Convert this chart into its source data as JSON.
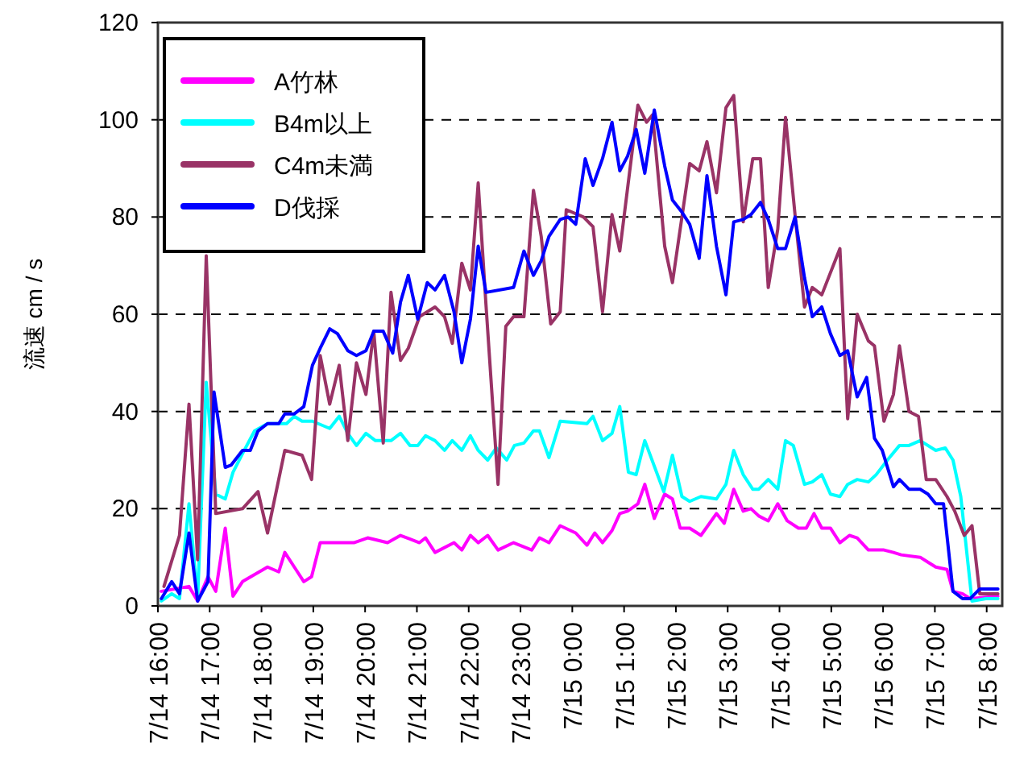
{
  "chart_data": {
    "type": "line",
    "ylabel": "流速 cm / s",
    "xlim": [
      "--07-14T16:00",
      "--07-15T08:18"
    ],
    "ylim": [
      0,
      120
    ],
    "yticks": [
      0,
      20,
      40,
      60,
      80,
      100,
      120
    ],
    "xticks": [
      {
        "value": "--07-14T16:00",
        "label": "7/14 16:00"
      },
      {
        "value": "--07-14T17:00",
        "label": "7/14 17:00"
      },
      {
        "value": "--07-14T18:00",
        "label": "7/14 18:00"
      },
      {
        "value": "--07-14T19:00",
        "label": "7/14 19:00"
      },
      {
        "value": "--07-14T20:00",
        "label": "7/14 20:00"
      },
      {
        "value": "--07-14T21:00",
        "label": "7/14 21:00"
      },
      {
        "value": "--07-14T22:00",
        "label": "7/14 22:00"
      },
      {
        "value": "--07-14T23:00",
        "label": "7/14 23:00"
      },
      {
        "value": "--07-15T00:00",
        "label": "7/15 0:00"
      },
      {
        "value": "--07-15T01:00",
        "label": "7/15 1:00"
      },
      {
        "value": "--07-15T02:00",
        "label": "7/15 2:00"
      },
      {
        "value": "--07-15T03:00",
        "label": "7/15 3:00"
      },
      {
        "value": "--07-15T04:00",
        "label": "7/15 4:00"
      },
      {
        "value": "--07-15T05:00",
        "label": "7/15 5:00"
      },
      {
        "value": "--07-15T06:00",
        "label": "7/15 6:00"
      },
      {
        "value": "--07-15T07:00",
        "label": "7/15 7:00"
      },
      {
        "value": "--07-15T08:00",
        "label": "7/15 8:00"
      }
    ],
    "grid": "y",
    "legend": "top left",
    "series": [
      {
        "name": "A竹林",
        "color": "#ff00ff",
        "x": [
          "--07-14T16:04",
          "--07-14T16:36",
          "--07-14T16:46",
          "--07-14T16:58",
          "--07-14T17:07",
          "--07-14T17:18",
          "--07-14T17:27",
          "--07-14T17:38",
          "--07-14T18:07",
          "--07-14T18:20",
          "--07-14T18:27",
          "--07-14T18:38",
          "--07-14T18:49",
          "--07-14T18:58",
          "--07-14T19:08",
          "--07-14T19:47",
          "--07-14T20:03",
          "--07-14T20:26",
          "--07-14T20:41",
          "--07-14T21:03",
          "--07-14T21:10",
          "--07-14T21:21",
          "--07-14T21:43",
          "--07-14T21:52",
          "--07-14T22:02",
          "--07-14T22:11",
          "--07-14T22:22",
          "--07-14T22:34",
          "--07-14T22:52",
          "--07-14T23:13",
          "--07-14T23:22",
          "--07-14T23:33",
          "--07-14T23:46",
          "--07-15T00:04",
          "--07-15T00:17",
          "--07-15T00:26",
          "--07-15T00:35",
          "--07-15T00:46",
          "--07-15T00:55",
          "--07-15T01:04",
          "--07-15T01:16",
          "--07-15T01:24",
          "--07-15T01:35",
          "--07-15T01:47",
          "--07-15T01:56",
          "--07-15T02:05",
          "--07-15T02:16",
          "--07-15T02:29",
          "--07-15T02:47",
          "--07-15T02:56",
          "--07-15T03:07",
          "--07-15T03:18",
          "--07-15T03:27",
          "--07-15T03:36",
          "--07-15T03:47",
          "--07-15T03:58",
          "--07-15T04:09",
          "--07-15T04:22",
          "--07-15T04:31",
          "--07-15T04:40",
          "--07-15T04:49",
          "--07-15T04:59",
          "--07-15T05:10",
          "--07-15T05:21",
          "--07-15T05:30",
          "--07-15T05:43",
          "--07-15T06:01",
          "--07-15T06:12",
          "--07-15T06:21",
          "--07-15T06:43",
          "--07-15T06:52",
          "--07-15T07:01",
          "--07-15T07:14",
          "--07-15T07:21",
          "--07-15T07:32",
          "--07-15T07:41",
          "--07-15T08:13"
        ],
        "values": [
          3,
          4,
          1,
          6,
          3,
          16,
          2,
          5,
          8,
          7,
          11,
          8,
          5,
          6,
          13,
          13,
          14,
          13,
          14.5,
          13,
          14,
          11,
          13,
          11.5,
          14.5,
          13,
          14.5,
          11.5,
          13,
          11.5,
          14,
          13,
          16.5,
          15,
          12.5,
          15,
          13,
          15.5,
          19,
          19.5,
          21,
          25,
          18,
          23,
          22,
          16,
          16,
          14.5,
          19,
          17,
          24,
          19.5,
          20,
          18.5,
          17.5,
          21,
          17.5,
          16,
          16,
          19,
          16,
          16,
          13,
          14.5,
          14,
          11.5,
          11.5,
          11,
          10.5,
          10,
          9,
          8,
          7.5,
          3,
          2.5,
          1.5,
          2
        ]
      },
      {
        "name": "B4m以上",
        "color": "#00ffff",
        "x": [
          "--07-14T16:04",
          "--07-14T16:16",
          "--07-14T16:25",
          "--07-14T16:36",
          "--07-14T16:46",
          "--07-14T16:56",
          "--07-14T17:07",
          "--07-14T17:18",
          "--07-14T17:27",
          "--07-14T17:40",
          "--07-14T17:52",
          "--07-14T18:07",
          "--07-14T18:29",
          "--07-14T18:38",
          "--07-14T18:47",
          "--07-14T18:59",
          "--07-14T19:19",
          "--07-14T19:30",
          "--07-14T19:40",
          "--07-14T19:50",
          "--07-14T20:01",
          "--07-14T20:12",
          "--07-14T20:30",
          "--07-14T20:41",
          "--07-14T20:52",
          "--07-14T21:01",
          "--07-14T21:10",
          "--07-14T21:21",
          "--07-14T21:32",
          "--07-14T21:41",
          "--07-14T21:52",
          "--07-14T22:02",
          "--07-14T22:11",
          "--07-14T22:22",
          "--07-14T22:32",
          "--07-14T22:44",
          "--07-14T22:53",
          "--07-14T23:04",
          "--07-14T23:15",
          "--07-14T23:22",
          "--07-14T23:33",
          "--07-14T23:46",
          "--07-15T00:17",
          "--07-15T00:24",
          "--07-15T00:35",
          "--07-15T00:46",
          "--07-15T00:55",
          "--07-15T01:05",
          "--07-15T01:14",
          "--07-15T01:24",
          "--07-15T01:46",
          "--07-15T01:56",
          "--07-15T02:07",
          "--07-15T02:16",
          "--07-15T02:29",
          "--07-15T02:47",
          "--07-15T02:58",
          "--07-15T03:07",
          "--07-15T03:18",
          "--07-15T03:29",
          "--07-15T03:36",
          "--07-15T03:47",
          "--07-15T03:58",
          "--07-15T04:07",
          "--07-15T04:16",
          "--07-15T04:29",
          "--07-15T04:38",
          "--07-15T04:49",
          "--07-15T04:59",
          "--07-15T05:10",
          "--07-15T05:19",
          "--07-15T05:30",
          "--07-15T05:43",
          "--07-15T05:52",
          "--07-15T06:05",
          "--07-15T06:19",
          "--07-15T06:30",
          "--07-15T06:43",
          "--07-15T07:01",
          "--07-15T07:12",
          "--07-15T07:21",
          "--07-15T07:30",
          "--07-15T07:43",
          "--07-15T07:59",
          "--07-15T08:13"
        ],
        "values": [
          1,
          2.5,
          1.5,
          21,
          1.5,
          46,
          23,
          22,
          27.5,
          32,
          36,
          37.5,
          37.5,
          39,
          38,
          38,
          36.5,
          39,
          35.5,
          33,
          35.5,
          34,
          34,
          35.5,
          33,
          33,
          35,
          34,
          32,
          34,
          32,
          35,
          32,
          30,
          32.5,
          30,
          33,
          33.5,
          36,
          36,
          30.5,
          38,
          37.5,
          39,
          34,
          35.5,
          41,
          27.5,
          27,
          34,
          23.5,
          31,
          22.5,
          21.5,
          22.5,
          22,
          25,
          32,
          27,
          24,
          24,
          26,
          24,
          34,
          33,
          25,
          25.5,
          27,
          23,
          22.5,
          25,
          26,
          25.5,
          27,
          30,
          33,
          33,
          34,
          32,
          32.5,
          30,
          22.5,
          1,
          1.5,
          1.5
        ]
      },
      {
        "name": "C4m未満",
        "color": "#993366",
        "x": [
          "--07-14T16:07",
          "--07-14T16:25",
          "--07-14T16:36",
          "--07-14T16:46",
          "--07-14T16:56",
          "--07-14T17:07",
          "--07-14T17:38",
          "--07-14T17:56",
          "--07-14T18:07",
          "--07-14T18:27",
          "--07-14T18:47",
          "--07-14T18:58",
          "--07-14T19:08",
          "--07-14T19:19",
          "--07-14T19:30",
          "--07-14T19:40",
          "--07-14T19:50",
          "--07-14T20:01",
          "--07-14T20:10",
          "--07-14T20:21",
          "--07-14T20:30",
          "--07-14T20:41",
          "--07-14T20:50",
          "--07-14T21:03",
          "--07-14T21:21",
          "--07-14T21:32",
          "--07-14T21:41",
          "--07-14T21:52",
          "--07-14T22:02",
          "--07-14T22:11",
          "--07-14T22:20",
          "--07-14T22:34",
          "--07-14T22:43",
          "--07-14T22:52",
          "--07-14T23:04",
          "--07-14T23:15",
          "--07-14T23:24",
          "--07-14T23:35",
          "--07-14T23:46",
          "--07-14T23:53",
          "--07-15T00:13",
          "--07-15T00:24",
          "--07-15T00:35",
          "--07-15T00:46",
          "--07-15T00:55",
          "--07-15T01:16",
          "--07-15T01:26",
          "--07-15T01:33",
          "--07-15T01:47",
          "--07-15T01:56",
          "--07-15T02:16",
          "--07-15T02:27",
          "--07-15T02:36",
          "--07-15T02:47",
          "--07-15T02:58",
          "--07-15T03:07",
          "--07-15T03:18",
          "--07-15T03:29",
          "--07-15T03:38",
          "--07-15T03:47",
          "--07-15T03:58",
          "--07-15T04:07",
          "--07-15T04:18",
          "--07-15T04:29",
          "--07-15T04:38",
          "--07-15T04:49",
          "--07-15T05:10",
          "--07-15T05:19",
          "--07-15T05:30",
          "--07-15T05:43",
          "--07-15T05:50",
          "--07-15T06:01",
          "--07-15T06:12",
          "--07-15T06:19",
          "--07-15T06:30",
          "--07-15T06:41",
          "--07-15T06:50",
          "--07-15T07:01",
          "--07-15T07:14",
          "--07-15T07:23",
          "--07-15T07:34",
          "--07-15T07:43",
          "--07-15T07:52",
          "--07-15T08:13"
        ],
        "values": [
          4,
          14.5,
          41.5,
          9.5,
          72,
          19,
          20,
          23.5,
          15,
          32,
          31,
          26,
          51.5,
          41.5,
          49.5,
          34,
          50,
          43.5,
          56.5,
          33.5,
          64.5,
          50.5,
          53,
          59.5,
          61.5,
          59.5,
          54,
          70.5,
          65,
          87,
          62,
          25,
          57.5,
          59.5,
          59.5,
          85.5,
          76,
          58,
          60.5,
          81.5,
          80,
          78,
          60.5,
          80.5,
          73,
          103,
          99.5,
          101,
          74,
          66.5,
          91,
          89.5,
          95.5,
          85,
          102.5,
          105,
          79,
          92,
          92,
          65.5,
          77.5,
          100.5,
          80.5,
          61.5,
          65.5,
          64,
          73.5,
          38.5,
          60,
          54.5,
          53.5,
          38,
          43.5,
          53.5,
          40,
          39,
          26,
          26,
          22.5,
          19.5,
          14.5,
          16.5,
          2.5,
          2.5
        ]
      },
      {
        "name": "D伐採",
        "color": "#0000ff",
        "x": [
          "--07-14T16:04",
          "--07-14T16:16",
          "--07-14T16:25",
          "--07-14T16:36",
          "--07-14T16:46",
          "--07-14T16:58",
          "--07-14T17:05",
          "--07-14T17:18",
          "--07-14T17:25",
          "--07-14T17:38",
          "--07-14T17:47",
          "--07-14T17:56",
          "--07-14T18:07",
          "--07-14T18:20",
          "--07-14T18:27",
          "--07-14T18:38",
          "--07-14T18:49",
          "--07-14T18:59",
          "--07-14T19:08",
          "--07-14T19:19",
          "--07-14T19:28",
          "--07-14T19:40",
          "--07-14T19:50",
          "--07-14T20:01",
          "--07-14T20:10",
          "--07-14T20:21",
          "--07-14T20:32",
          "--07-14T20:41",
          "--07-14T20:50",
          "--07-14T21:01",
          "--07-14T21:12",
          "--07-14T21:21",
          "--07-14T21:32",
          "--07-14T21:43",
          "--07-14T21:52",
          "--07-14T22:02",
          "--07-14T22:11",
          "--07-14T22:20",
          "--07-14T22:52",
          "--07-14T23:04",
          "--07-14T23:15",
          "--07-14T23:24",
          "--07-14T23:33",
          "--07-14T23:46",
          "--07-14T23:55",
          "--07-15T00:04",
          "--07-15T00:15",
          "--07-15T00:24",
          "--07-15T00:35",
          "--07-15T00:46",
          "--07-15T00:55",
          "--07-15T01:04",
          "--07-15T01:14",
          "--07-15T01:24",
          "--07-15T01:35",
          "--07-15T01:47",
          "--07-15T01:56",
          "--07-15T02:07",
          "--07-15T02:16",
          "--07-15T02:27",
          "--07-15T02:36",
          "--07-15T02:47",
          "--07-15T02:58",
          "--07-15T03:07",
          "--07-15T03:18",
          "--07-15T03:27",
          "--07-15T03:38",
          "--07-15T03:47",
          "--07-15T03:58",
          "--07-15T04:07",
          "--07-15T04:18",
          "--07-15T04:29",
          "--07-15T04:38",
          "--07-15T04:49",
          "--07-15T04:59",
          "--07-15T05:10",
          "--07-15T05:19",
          "--07-15T05:30",
          "--07-15T05:41",
          "--07-15T05:50",
          "--07-15T05:59",
          "--07-15T06:12",
          "--07-15T06:19",
          "--07-15T06:30",
          "--07-15T06:43",
          "--07-15T06:52",
          "--07-15T07:01",
          "--07-15T07:10",
          "--07-15T07:21",
          "--07-15T07:32",
          "--07-15T07:41",
          "--07-15T07:52",
          "--07-15T08:13"
        ],
        "values": [
          1.5,
          5,
          2.5,
          15,
          1,
          5,
          44,
          28.5,
          29,
          32,
          32,
          36,
          37.5,
          37.5,
          39.5,
          39.5,
          41,
          49.5,
          53,
          57,
          56,
          52.5,
          51.5,
          52.5,
          56.5,
          56.5,
          52,
          62.5,
          68,
          59,
          66.5,
          65,
          68,
          60.5,
          50,
          59,
          74,
          64.5,
          65.5,
          73,
          68,
          71,
          76,
          79.5,
          80,
          78.5,
          92,
          86.5,
          92,
          99.5,
          89.5,
          92.5,
          98,
          89,
          102,
          90.5,
          83.5,
          81,
          78.5,
          71.5,
          88.5,
          74,
          64,
          79,
          79.5,
          80.5,
          83,
          79.5,
          73.5,
          73.5,
          80,
          67.5,
          59.5,
          61.5,
          56,
          51.5,
          52.5,
          43,
          47,
          34.5,
          32,
          24.5,
          26,
          24,
          24,
          23,
          21,
          21,
          3,
          1.5,
          1.5,
          3.5,
          3.5
        ]
      }
    ]
  }
}
